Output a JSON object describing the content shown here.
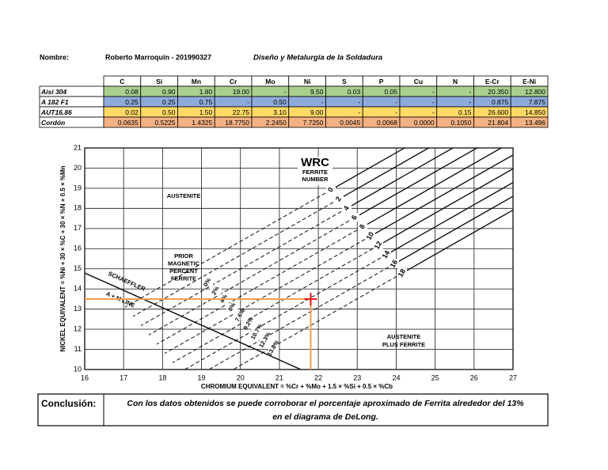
{
  "header": {
    "name_label": "Nombre:",
    "name": "Roberto Marroquín - 201990327",
    "course": "Diseño y Metalurgia de la Soldadura"
  },
  "table": {
    "columns": [
      "C",
      "Si",
      "Mn",
      "Cr",
      "Mo",
      "Ni",
      "S",
      "P",
      "Cu",
      "N",
      "E-Cr",
      "E-Ni"
    ],
    "rows": [
      {
        "label": "Aisi 304",
        "cells": [
          "0.08",
          "0.90",
          "1.80",
          "19.00",
          "-",
          "9.50",
          "0.03",
          "0.05",
          "-",
          "-",
          "20.350",
          "12.800"
        ]
      },
      {
        "label": "A 182 F1",
        "cells": [
          "0.25",
          "0.25",
          "0.75",
          "-",
          "0.50",
          "-",
          "-",
          "-",
          "-",
          "-",
          "0.875",
          "7.875"
        ]
      },
      {
        "label": "AUT16.86",
        "cells": [
          "0.02",
          "0.50",
          "1.50",
          "22.75",
          "3.10",
          "9.00",
          "-",
          "-",
          "-",
          "0.15",
          "26.600",
          "14.850"
        ]
      },
      {
        "label": "Cordón",
        "cells": [
          "0.0635",
          "0.5225",
          "1.4325",
          "18.7750",
          "2.2450",
          "7.7250",
          "0.0045",
          "0.0068",
          "0.0000",
          "0.1050",
          "21.804",
          "13.496"
        ]
      }
    ]
  },
  "diagram": {
    "xlim": [
      16,
      27
    ],
    "ylim": [
      10,
      21
    ],
    "xticks": [
      16,
      17,
      18,
      19,
      20,
      21,
      22,
      23,
      24,
      25,
      26,
      27
    ],
    "yticks": [
      10,
      11,
      12,
      13,
      14,
      15,
      16,
      17,
      18,
      19,
      20,
      21
    ],
    "xlabel": "CHROMIUM EQUIVALENT = %Cr + %Mo + 1.5 × %Si + 0.5 × %Cb",
    "ylabel": "NICKEL EQUIVALENT = %Ni + 30 × %C + 30 × %N + 0.5 × %Mn",
    "wrc": "WRC",
    "fn_title": [
      "FERRITE",
      "NUMBER"
    ],
    "ferrite_numbers": [
      0,
      2,
      4,
      6,
      8,
      10,
      12,
      14,
      16,
      18
    ],
    "prior_title": [
      "PRIOR",
      "MAGNETIC",
      "PERCENT",
      "FERRITE"
    ],
    "percent_labels": [
      "0%",
      "2%",
      "4%",
      "6%",
      "7.6%",
      "9.2%",
      "10.7%",
      "12.3%",
      "13.8%"
    ],
    "austenite": "AUSTENITE",
    "austenite_ferrite": [
      "AUSTENITE",
      "PLUS FERRITE"
    ],
    "schaeffler": [
      "SCHAEFFLER",
      "A + M LINE"
    ]
  },
  "conclusion": {
    "label": "Conclusión:",
    "text": [
      "Con los datos obtenidos se puede corroborar el porcentaje aproximado de Ferrita alrededor del 13%",
      "en el diagrama de DeLong."
    ]
  }
}
